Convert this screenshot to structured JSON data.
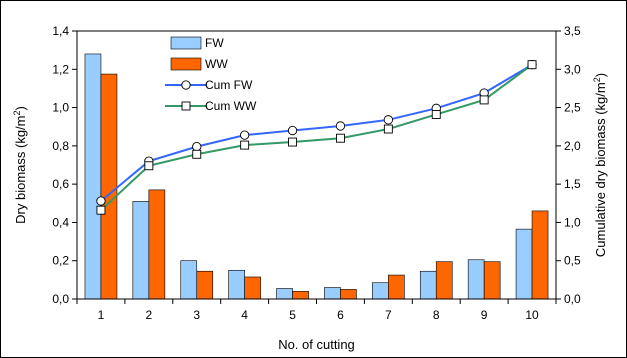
{
  "chart_data": {
    "type": "bar",
    "categories": [
      "1",
      "2",
      "3",
      "4",
      "5",
      "6",
      "7",
      "8",
      "9",
      "10"
    ],
    "xlabel": "No. of cutting",
    "ylabel_left": {
      "text": "Dry biomass (kg/m",
      "sup": "2",
      "close": ")"
    },
    "ylabel_right": {
      "text": "Cumulative dry biomass (kg/m",
      "sup": "2",
      "close": ")"
    },
    "y_left": {
      "min": 0,
      "max": 1.4,
      "ticks": [
        "0,0",
        "0,2",
        "0,4",
        "0,6",
        "0,8",
        "1,0",
        "1,2",
        "1,4"
      ]
    },
    "y_right": {
      "min": 0,
      "max": 3.5,
      "ticks": [
        "0,0",
        "0,5",
        "1,0",
        "1,5",
        "2,0",
        "2,5",
        "3,0",
        "3,5"
      ]
    },
    "series": [
      {
        "name": "FW",
        "kind": "bar",
        "axis": "left",
        "color": "#99ccff",
        "values": [
          1.28,
          0.51,
          0.2,
          0.15,
          0.055,
          0.06,
          0.085,
          0.145,
          0.205,
          0.365
        ]
      },
      {
        "name": "WW",
        "kind": "bar",
        "axis": "left",
        "color": "#ff6600",
        "values": [
          1.175,
          0.57,
          0.145,
          0.115,
          0.04,
          0.05,
          0.125,
          0.195,
          0.195,
          0.46
        ]
      },
      {
        "name": "Cum FW",
        "kind": "line",
        "axis": "right",
        "color": "#3366ff",
        "marker": "circle",
        "values": [
          1.28,
          1.8,
          1.99,
          2.14,
          2.2,
          2.26,
          2.34,
          2.49,
          2.69,
          3.06
        ]
      },
      {
        "name": "Cum WW",
        "kind": "line",
        "axis": "right",
        "color": "#339966",
        "marker": "square",
        "values": [
          1.16,
          1.74,
          1.89,
          2.01,
          2.05,
          2.1,
          2.22,
          2.41,
          2.6,
          3.06
        ]
      }
    ],
    "legend_position": "top-left",
    "grid": false
  }
}
